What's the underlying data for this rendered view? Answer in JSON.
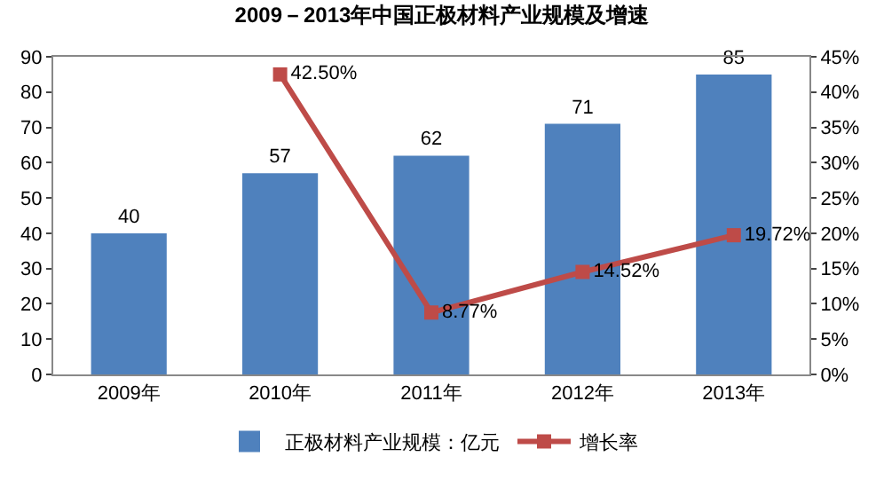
{
  "chart_data": {
    "type": "bar",
    "title": "2009－2013年中国正极材料产业规模及增速",
    "categories": [
      "2009年",
      "2010年",
      "2011年",
      "2012年",
      "2013年"
    ],
    "series": [
      {
        "name": "正极材料产业规模：亿元",
        "color": "#4f81bd",
        "values": [
          40,
          57,
          62,
          71,
          85
        ],
        "data_labels": true
      },
      {
        "name": "增长率",
        "type": "line",
        "axis": "y2",
        "color": "#be4b48",
        "marker": "square",
        "values": [
          null,
          42.5,
          8.77,
          14.52,
          19.72
        ],
        "value_labels": [
          null,
          "42.50%",
          "8.77%",
          "14.52%",
          "19.72%"
        ]
      }
    ],
    "ylim": [
      0,
      90
    ],
    "yticks": [
      0,
      10,
      20,
      30,
      40,
      50,
      60,
      70,
      80,
      90
    ],
    "y2lim": [
      0,
      45
    ],
    "y2ticks": [
      {
        "value": 0,
        "label": "0%"
      },
      {
        "value": 5,
        "label": "5%"
      },
      {
        "value": 10,
        "label": "10%"
      },
      {
        "value": 15,
        "label": "15%"
      },
      {
        "value": 20,
        "label": "20%"
      },
      {
        "value": 25,
        "label": "25%"
      },
      {
        "value": 30,
        "label": "30%"
      },
      {
        "value": 35,
        "label": "35%"
      },
      {
        "value": 40,
        "label": "40%"
      },
      {
        "value": 45,
        "label": "45%"
      }
    ],
    "grid": false,
    "legend": "bottom"
  }
}
